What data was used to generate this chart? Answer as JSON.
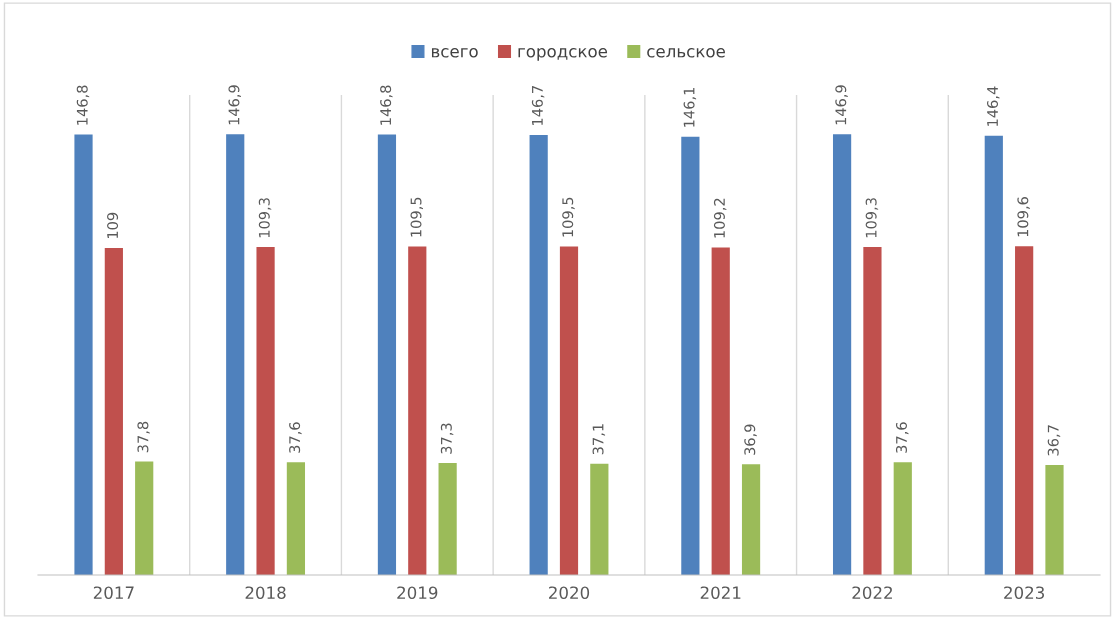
{
  "chart_data": {
    "type": "bar",
    "categories": [
      "2017",
      "2018",
      "2019",
      "2020",
      "2021",
      "2022",
      "2023"
    ],
    "series": [
      {
        "name": "всего",
        "color": "#4f81bd",
        "values": [
          146.8,
          146.9,
          146.8,
          146.7,
          146.1,
          146.9,
          146.4
        ],
        "value_labels": [
          "146,8",
          "146,9",
          "146,8",
          "146,7",
          "146,1",
          "146,9",
          "146,4"
        ]
      },
      {
        "name": "городское",
        "color": "#c0504d",
        "values": [
          109,
          109.3,
          109.5,
          109.5,
          109.2,
          109.3,
          109.6
        ],
        "value_labels": [
          "109",
          "109,3",
          "109,5",
          "109,5",
          "109,2",
          "109,3",
          "109,6"
        ]
      },
      {
        "name": "сельское",
        "color": "#9bbb59",
        "values": [
          37.8,
          37.6,
          37.3,
          37.1,
          36.9,
          37.6,
          36.7
        ],
        "value_labels": [
          "37,8",
          "37,6",
          "37,3",
          "37,1",
          "36,9",
          "37,6",
          "36,7"
        ]
      }
    ],
    "ylim": [
      0,
      160
    ],
    "tick_labels": "x",
    "grid": "x",
    "legend": "top"
  }
}
